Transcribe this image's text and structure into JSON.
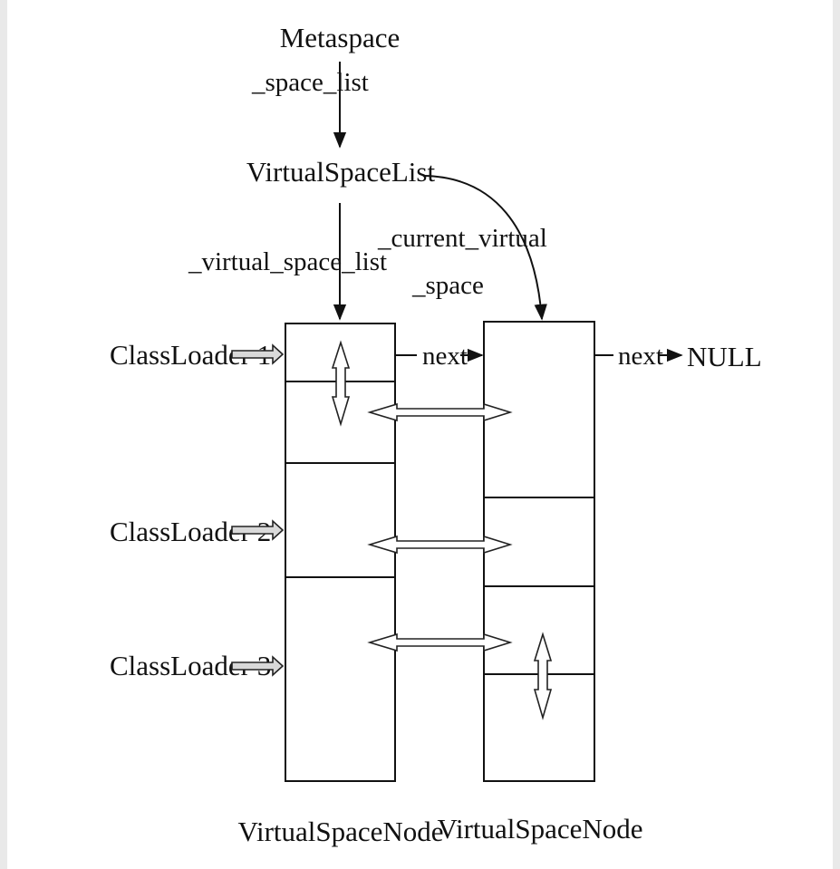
{
  "labels": {
    "metaspace": "Metaspace",
    "space_list": "_space_list",
    "virtual_space_list_class": "VirtualSpaceList",
    "virtual_space_list_field": "_virtual_space_list",
    "current_virtual_1": "_current_virtual",
    "current_virtual_2": "_space",
    "next_1": "next",
    "next_2": "next",
    "null": "NULL",
    "node_1": "VirtualSpaceNode",
    "node_2": "VirtualSpaceNode"
  },
  "class_loaders": [
    "ClassLoader 1",
    "ClassLoader 2",
    "ClassLoader 3"
  ]
}
